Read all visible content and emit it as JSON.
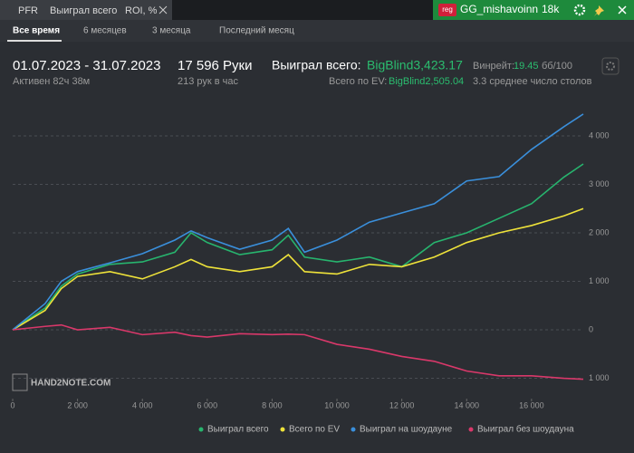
{
  "top_bar": {
    "tabs": [
      "PFR",
      "Выиграл всего",
      "ROI, %"
    ],
    "badge": "reg",
    "user": "GG_mishavoinn",
    "stake": "18k"
  },
  "period_tabs": [
    "Все время",
    "6 месяцев",
    "3 месяца",
    "Последний месяц"
  ],
  "stats": {
    "date_range": "01.07.2023 - 31.07.2023",
    "active": "Активен 82ч 38м",
    "hands": "17 596 Руки",
    "hands_per_hour": "213 рук в час",
    "won_label": "Выиграл всего:",
    "won_value": "BigBlind3,423.17",
    "ev_label": "Всего по EV:",
    "ev_value": "BigBlind2,505.04",
    "winrate_label": "Винрейт:",
    "winrate_value": "19.45",
    "winrate_unit": "бб/100",
    "tables": "3.3 среднее число столов"
  },
  "watermark": "HAND2NOTE.COM",
  "chart_data": {
    "type": "line",
    "grid": true,
    "x": [
      0,
      1000,
      1500,
      2000,
      3000,
      4000,
      5000,
      5500,
      6000,
      7000,
      8000,
      8500,
      9000,
      10000,
      11000,
      12000,
      13000,
      14000,
      15000,
      16000,
      17000,
      17596
    ],
    "xlim": [
      0,
      17596
    ],
    "xticks": [
      0,
      {
        "value": 2000,
        "label": "2 000"
      },
      {
        "value": 4000,
        "label": "4 000"
      },
      {
        "value": 6000,
        "label": "6 000"
      },
      {
        "value": 8000,
        "label": "8 000"
      },
      {
        "value": 10000,
        "label": "10 000"
      },
      {
        "value": 12000,
        "label": "12 000"
      },
      {
        "value": 14000,
        "label": "14 000"
      },
      {
        "value": 16000,
        "label": "16 000"
      }
    ],
    "ylim": [
      -1420,
      4840
    ],
    "yticks": [
      {
        "value": -1000,
        "label": "1 000"
      },
      0,
      {
        "value": 1000,
        "label": "1 000"
      },
      {
        "value": 2000,
        "label": "2 000"
      },
      {
        "value": 3000,
        "label": "3 000"
      },
      {
        "value": 4000,
        "label": "4 000"
      }
    ],
    "series": [
      {
        "name": "Выиграл всего",
        "color": "#27b46e",
        "values": [
          0,
          450,
          900,
          1150,
          1350,
          1400,
          1600,
          2000,
          1800,
          1550,
          1650,
          1950,
          1500,
          1400,
          1500,
          1300,
          1800,
          2000,
          2300,
          2600,
          3150,
          3420
        ]
      },
      {
        "name": "Всего по EV",
        "color": "#eee23a",
        "values": [
          0,
          400,
          850,
          1100,
          1200,
          1050,
          1300,
          1450,
          1300,
          1200,
          1300,
          1550,
          1200,
          1150,
          1350,
          1300,
          1500,
          1800,
          2000,
          2150,
          2350,
          2500
        ]
      },
      {
        "name": "Выиграл на шоудауне",
        "color": "#3a8fdb",
        "values": [
          0,
          540,
          1000,
          1200,
          1380,
          1570,
          1850,
          2040,
          1900,
          1660,
          1850,
          2090,
          1600,
          1850,
          2220,
          2410,
          2600,
          3070,
          3160,
          3720,
          4190,
          4450
        ]
      },
      {
        "name": "Выиграл без шоудауна",
        "color": "#d9386a",
        "values": [
          0,
          70,
          100,
          0,
          50,
          -100,
          -50,
          -120,
          -150,
          -80,
          -100,
          -90,
          -100,
          -300,
          -400,
          -550,
          -650,
          -850,
          -950,
          -950,
          -1000,
          -1020
        ]
      }
    ]
  }
}
